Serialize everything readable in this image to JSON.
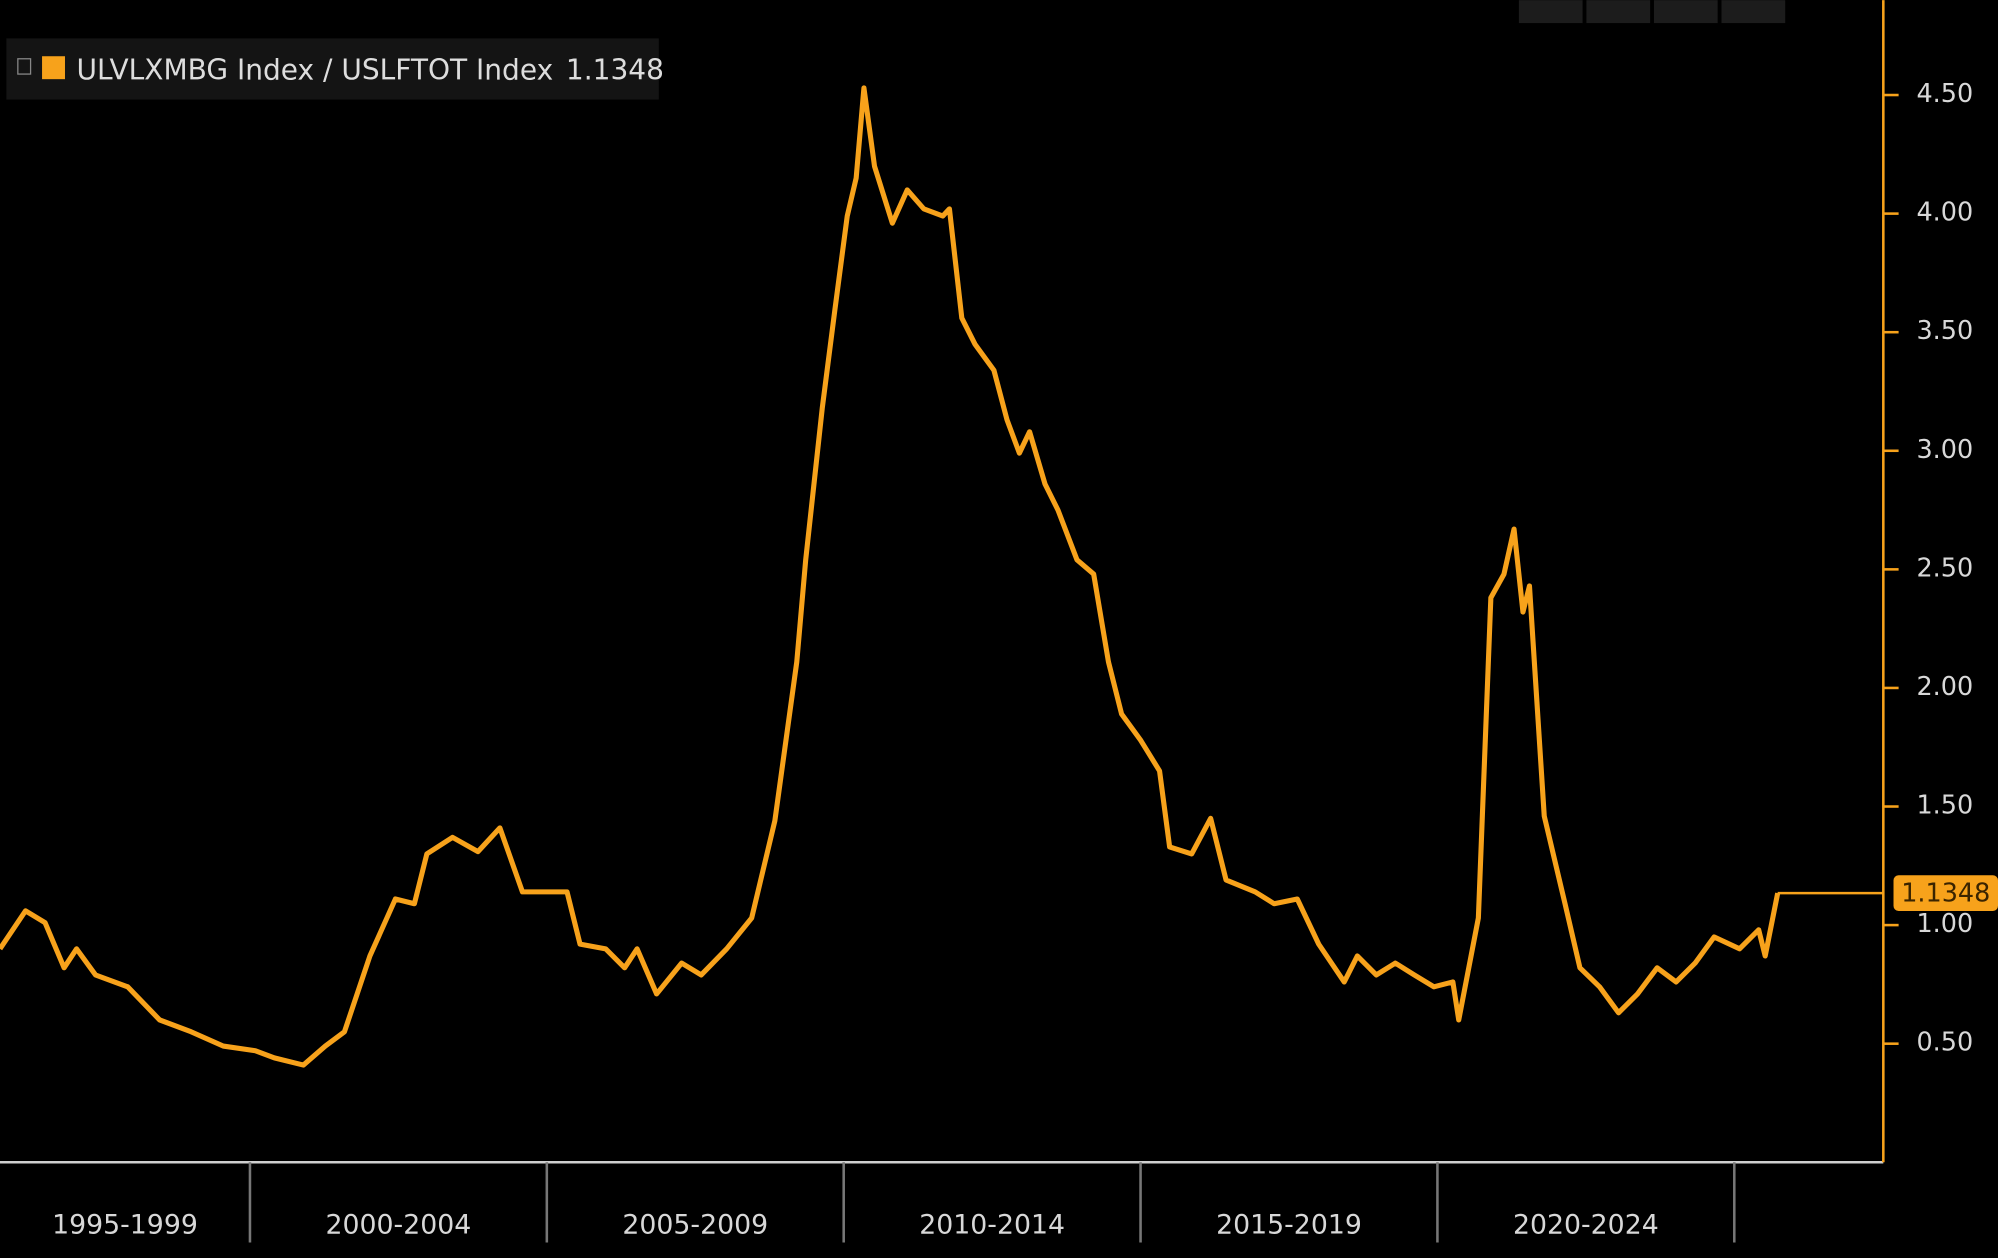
{
  "chart_data": {
    "type": "line",
    "series": [
      {
        "name": "ULVLXMBG Index / USLFTOT Index",
        "color": "#f7a21b",
        "x": [
          1995.79,
          1996.22,
          1996.55,
          1996.87,
          1997.08,
          1997.4,
          1997.94,
          1998.48,
          1999.01,
          1999.55,
          2000.09,
          2000.41,
          2000.9,
          2001.27,
          2001.59,
          2002.02,
          2002.45,
          2002.77,
          2002.98,
          2003.41,
          2003.84,
          2004.21,
          2004.59,
          2005.02,
          2005.34,
          2005.56,
          2005.99,
          2006.31,
          2006.52,
          2006.85,
          2007.27,
          2007.6,
          2008.03,
          2008.45,
          2008.84,
          2009.21,
          2009.36,
          2009.64,
          2009.85,
          2010.06,
          2010.21,
          2010.34,
          2010.52,
          2010.82,
          2011.07,
          2011.35,
          2011.67,
          2011.78,
          2011.99,
          2012.21,
          2012.53,
          2012.75,
          2012.96,
          2013.13,
          2013.39,
          2013.61,
          2013.93,
          2014.21,
          2014.46,
          2014.68,
          2015.0,
          2015.32,
          2015.49,
          2015.86,
          2016.18,
          2016.44,
          2016.93,
          2017.25,
          2017.64,
          2018.0,
          2018.43,
          2018.65,
          2018.97,
          2019.29,
          2019.61,
          2019.94,
          2020.26,
          2020.36,
          2020.69,
          2020.9,
          2021.12,
          2021.29,
          2021.44,
          2021.55,
          2021.8,
          2022.15,
          2022.4,
          2022.73,
          2023.05,
          2023.37,
          2023.7,
          2024.02,
          2024.34,
          2024.66,
          2025.09,
          2025.41,
          2025.52,
          2025.73
        ],
        "values": [
          0.9,
          1.06,
          1.01,
          0.82,
          0.9,
          0.79,
          0.74,
          0.6,
          0.55,
          0.49,
          0.47,
          0.44,
          0.41,
          0.49,
          0.55,
          0.87,
          1.11,
          1.09,
          1.3,
          1.37,
          1.31,
          1.41,
          1.14,
          1.14,
          1.14,
          0.92,
          0.9,
          0.82,
          0.9,
          0.71,
          0.84,
          0.79,
          0.9,
          1.03,
          1.44,
          2.11,
          2.54,
          3.18,
          3.59,
          3.99,
          4.15,
          4.53,
          4.2,
          3.96,
          4.1,
          4.02,
          3.99,
          4.02,
          3.56,
          3.45,
          3.34,
          3.13,
          2.99,
          3.08,
          2.86,
          2.75,
          2.54,
          2.48,
          2.11,
          1.89,
          1.78,
          1.65,
          1.33,
          1.3,
          1.45,
          1.19,
          1.14,
          1.09,
          1.11,
          0.92,
          0.76,
          0.87,
          0.79,
          0.84,
          0.79,
          0.74,
          0.76,
          0.6,
          1.03,
          2.38,
          2.48,
          2.67,
          2.32,
          2.43,
          1.46,
          1.09,
          0.82,
          0.74,
          0.63,
          0.71,
          0.82,
          0.76,
          0.84,
          0.95,
          0.9,
          0.98,
          0.87,
          1.1348
        ]
      }
    ],
    "ylim": [
      0,
      4.9
    ],
    "yticks": [
      {
        "value": 0.5,
        "label": "0.50"
      },
      {
        "value": 1,
        "label": "1.00"
      },
      {
        "value": 1.5,
        "label": "1.50"
      },
      {
        "value": 2,
        "label": "2.00"
      },
      {
        "value": 2.5,
        "label": "2.50"
      },
      {
        "value": 3,
        "label": "3.00"
      },
      {
        "value": 3.5,
        "label": "3.50"
      },
      {
        "value": 4,
        "label": "4.00"
      },
      {
        "value": 4.5,
        "label": "4.50"
      }
    ],
    "xlim": [
      1995.79,
      2027.51
    ],
    "xticks": [
      2000,
      2005,
      2010,
      2015,
      2020,
      2025
    ],
    "x_periods": [
      {
        "start": 1995,
        "end": 2000,
        "label": "1995-1999"
      },
      {
        "start": 2000,
        "end": 2005,
        "label": "2000-2004"
      },
      {
        "start": 2005,
        "end": 2010,
        "label": "2005-2009"
      },
      {
        "start": 2010,
        "end": 2015,
        "label": "2010-2014"
      },
      {
        "start": 2015,
        "end": 2020,
        "label": "2015-2019"
      },
      {
        "start": 2020,
        "end": 2025,
        "label": "2020-2024"
      }
    ]
  }
}
